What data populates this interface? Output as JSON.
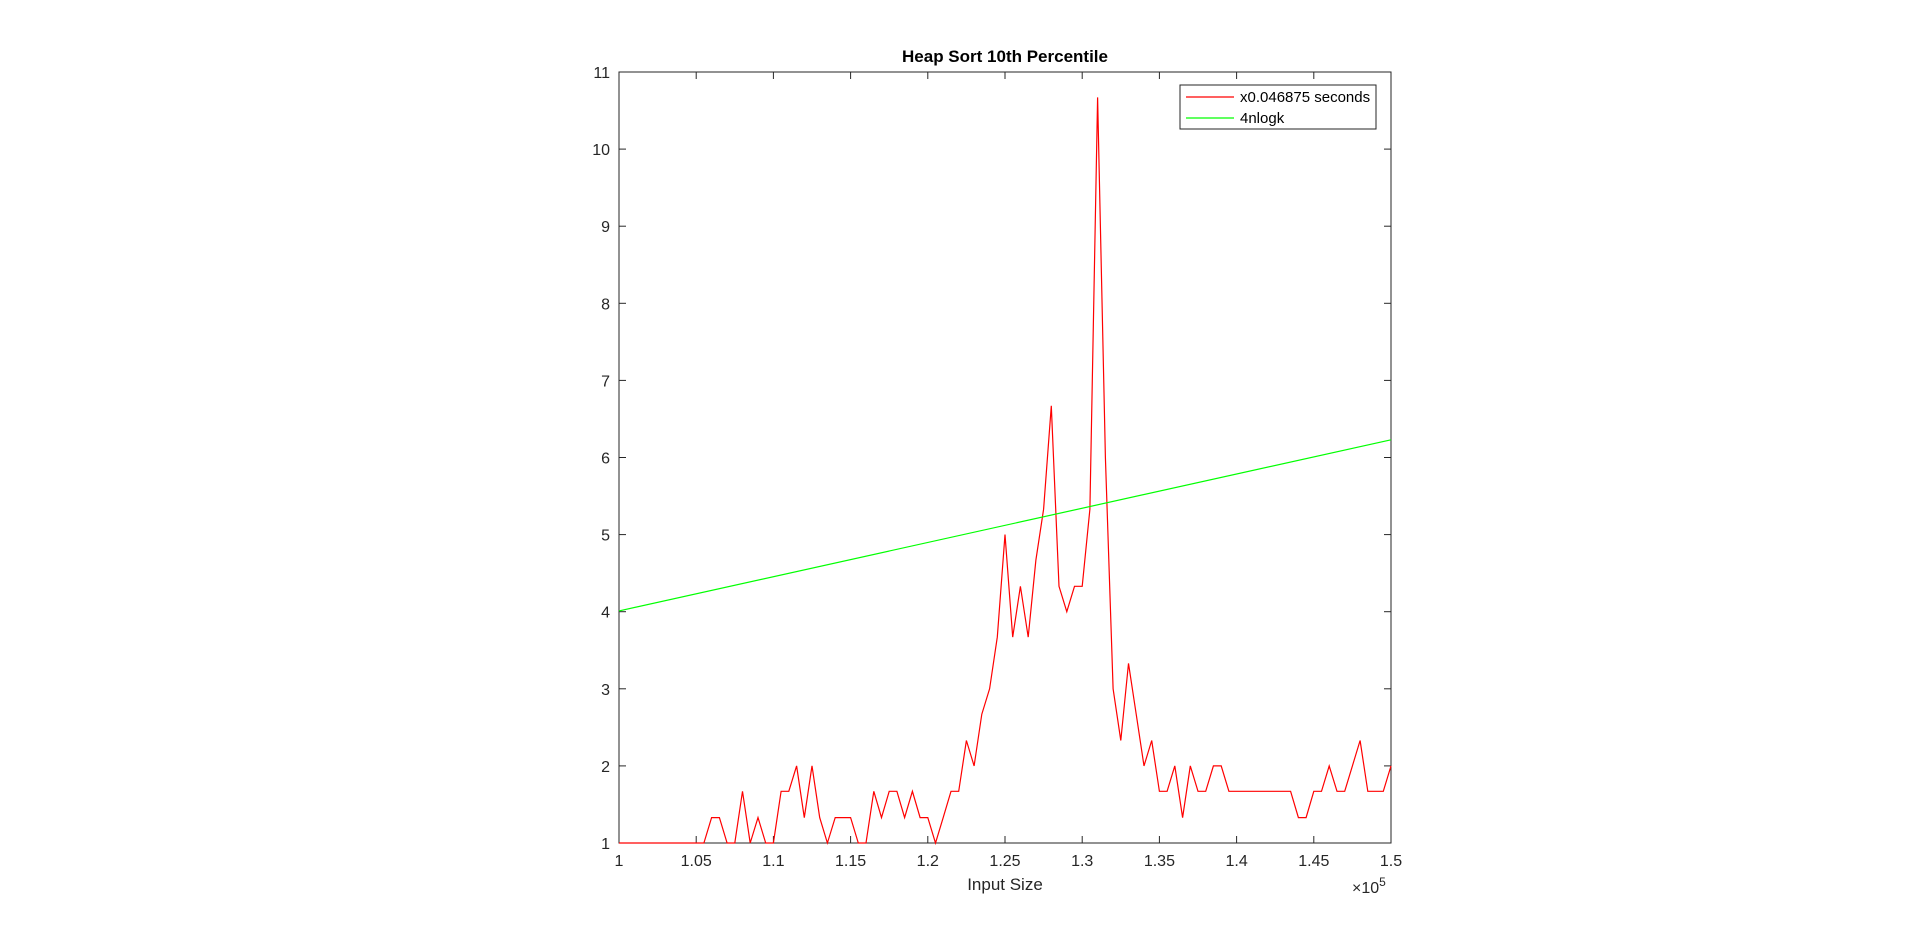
{
  "chart_data": {
    "type": "line",
    "title": "Heap Sort 10th Percentile",
    "xlabel": "Input Size",
    "ylabel": "",
    "x_exponent_base": "×10",
    "x_exponent_power": "5",
    "xlim": [
      1.0,
      1.5
    ],
    "ylim": [
      1,
      11
    ],
    "x_ticks": [
      "1",
      "1.05",
      "1.1",
      "1.15",
      "1.2",
      "1.25",
      "1.3",
      "1.35",
      "1.4",
      "1.45",
      "1.5"
    ],
    "y_ticks": [
      "1",
      "2",
      "3",
      "4",
      "5",
      "6",
      "7",
      "8",
      "9",
      "10",
      "11"
    ],
    "grid": false,
    "legend_position": "top-right",
    "series": [
      {
        "name": "x0.046875 seconds",
        "color": "#ff0000",
        "x": [
          1.0,
          1.005,
          1.01,
          1.015,
          1.02,
          1.025,
          1.03,
          1.035,
          1.04,
          1.045,
          1.05,
          1.055,
          1.06,
          1.065,
          1.07,
          1.075,
          1.08,
          1.085,
          1.09,
          1.095,
          1.1,
          1.105,
          1.11,
          1.115,
          1.12,
          1.125,
          1.13,
          1.135,
          1.14,
          1.145,
          1.15,
          1.155,
          1.16,
          1.165,
          1.17,
          1.175,
          1.18,
          1.185,
          1.19,
          1.195,
          1.2,
          1.205,
          1.21,
          1.215,
          1.22,
          1.225,
          1.23,
          1.235,
          1.24,
          1.245,
          1.25,
          1.255,
          1.26,
          1.265,
          1.27,
          1.275,
          1.28,
          1.285,
          1.29,
          1.295,
          1.3,
          1.305,
          1.31,
          1.315,
          1.32,
          1.325,
          1.33,
          1.335,
          1.34,
          1.345,
          1.35,
          1.355,
          1.36,
          1.365,
          1.37,
          1.375,
          1.38,
          1.385,
          1.39,
          1.395,
          1.4,
          1.405,
          1.41,
          1.415,
          1.42,
          1.425,
          1.43,
          1.435,
          1.44,
          1.445,
          1.45,
          1.455,
          1.46,
          1.465,
          1.47,
          1.475,
          1.48,
          1.485,
          1.49,
          1.495,
          1.5
        ],
        "y": [
          1,
          1,
          1,
          1,
          1,
          1,
          1,
          1,
          1,
          1,
          1,
          1,
          1.33,
          1.33,
          1,
          1,
          1.67,
          1,
          1.33,
          1,
          1,
          1.67,
          1.67,
          2,
          1.33,
          2,
          1.33,
          1,
          1.33,
          1.33,
          1.33,
          1,
          1,
          1.67,
          1.33,
          1.67,
          1.67,
          1.33,
          1.67,
          1.33,
          1.33,
          1,
          1.33,
          1.67,
          1.67,
          2.33,
          2,
          2.67,
          3,
          3.67,
          5,
          3.67,
          4.33,
          3.67,
          4.67,
          5.33,
          6.67,
          4.33,
          4,
          4.33,
          4.33,
          5.33,
          10.67,
          6,
          3,
          2.33,
          3.33,
          2.67,
          2,
          2.33,
          1.67,
          1.67,
          2,
          1.33,
          2,
          1.67,
          1.67,
          2,
          2,
          1.67,
          1.67,
          1.67,
          1.67,
          1.67,
          1.67,
          1.67,
          1.67,
          1.67,
          1.33,
          1.33,
          1.67,
          1.67,
          2,
          1.67,
          1.67,
          2,
          2.33,
          1.67,
          1.67,
          1.67,
          2
        ]
      },
      {
        "name": "4nlogk",
        "color": "#00ff00",
        "x": [
          1.0,
          1.5
        ],
        "y": [
          4.01,
          6.23
        ]
      }
    ]
  }
}
